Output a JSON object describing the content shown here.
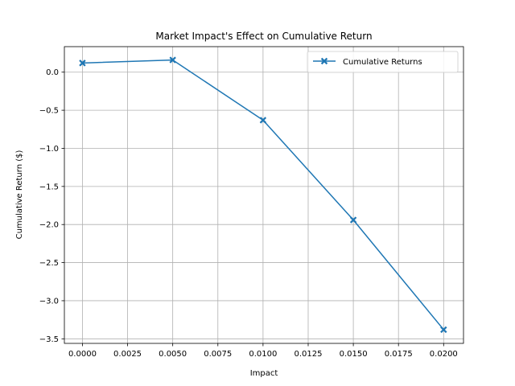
{
  "chart_data": {
    "type": "line",
    "title": "Market Impact's Effect on Cumulative Return",
    "xlabel": "Impact",
    "ylabel": "Cumulative Return ($)",
    "xlim": [
      -0.001,
      0.0211
    ],
    "ylim": [
      -3.56,
      0.335
    ],
    "xticks": [
      0.0,
      0.0025,
      0.005,
      0.0075,
      0.01,
      0.0125,
      0.015,
      0.0175,
      0.02
    ],
    "xtick_labels": [
      "0.0000",
      "0.0025",
      "0.0050",
      "0.0075",
      "0.0100",
      "0.0125",
      "0.0150",
      "0.0175",
      "0.0200"
    ],
    "yticks": [
      0.0,
      -0.5,
      -1.0,
      -1.5,
      -2.0,
      -2.5,
      -3.0,
      -3.5
    ],
    "ytick_labels": [
      "0.0",
      "−0.5",
      "−1.0",
      "−1.5",
      "−2.0",
      "−2.5",
      "−3.0",
      "−3.5"
    ],
    "grid": true,
    "legend_position": "top-right",
    "series": [
      {
        "name": "Cumulative Returns",
        "color": "#1f77b4",
        "marker": "X",
        "x": [
          0.0,
          0.005,
          0.01,
          0.015,
          0.02
        ],
        "y": [
          0.12,
          0.16,
          -0.63,
          -1.94,
          -3.38
        ]
      }
    ]
  }
}
